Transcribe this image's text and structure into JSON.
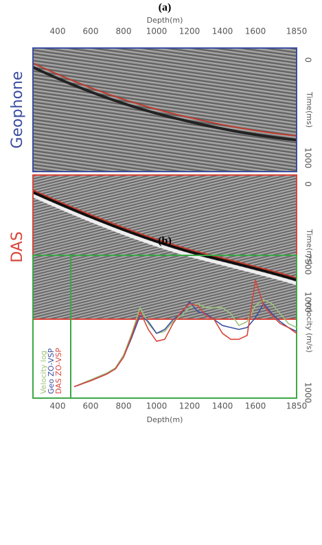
{
  "chart_data": [
    {
      "type": "seismic",
      "title": "(a)",
      "xlabel": "Depth(m)",
      "xlim": [
        250,
        1850
      ],
      "xticks": [
        400,
        600,
        800,
        1000,
        1200,
        1400,
        1600,
        1850
      ],
      "panels": [
        {
          "label": "Geophone",
          "color": "#3b4ea0",
          "ylabel": "Time(ms)",
          "ylim": [
            -120,
            1140
          ],
          "yticks": [
            0,
            1000
          ]
        },
        {
          "label": "DAS",
          "color": "#d8453a",
          "ylabel": "Time(ms)",
          "ylim": [
            -76,
            1145
          ],
          "yticks": [
            0,
            1000
          ]
        }
      ]
    },
    {
      "type": "line",
      "title": "(b)",
      "xlabel": "Depth(m)",
      "ylabel": "velocity (m/s)",
      "frame_color": "#3aa845",
      "xlim": [
        250,
        1850
      ],
      "xticks": [
        400,
        600,
        800,
        1000,
        1200,
        1400,
        1600,
        1850
      ],
      "ylim": [
        1000,
        7500
      ],
      "yticks": [
        1000,
        7500
      ],
      "x": [
        500,
        600,
        700,
        750,
        800,
        850,
        900,
        950,
        1000,
        1050,
        1100,
        1150,
        1200,
        1250,
        1300,
        1350,
        1400,
        1450,
        1500,
        1550,
        1600,
        1650,
        1700,
        1750,
        1800,
        1850
      ],
      "series": [
        {
          "name": "Velocity log",
          "color": "#9bc27a",
          "values": [
            1300,
            1650,
            2000,
            2250,
            2900,
            4000,
            5300,
            4500,
            4000,
            4100,
            4600,
            4900,
            5300,
            5500,
            5300,
            5300,
            5300,
            5000,
            4400,
            4600,
            5400,
            5700,
            5500,
            5000,
            4500,
            4300
          ]
        },
        {
          "name": "Geo ZO-VSP",
          "color": "#3b4ea0",
          "values": [
            1300,
            1600,
            1950,
            2200,
            2800,
            3800,
            4900,
            4600,
            4000,
            4200,
            4700,
            5000,
            5600,
            5100,
            5000,
            4700,
            4400,
            4300,
            4200,
            4300,
            4800,
            5500,
            5000,
            4600,
            4300,
            4100
          ]
        },
        {
          "name": "DAS ZO-VSP",
          "color": "#d8453a",
          "values": [
            1300,
            1600,
            1950,
            2200,
            2800,
            3900,
            5100,
            4200,
            3600,
            3700,
            4500,
            5100,
            5500,
            5400,
            4900,
            4700,
            4000,
            3700,
            3700,
            3900,
            6700,
            5400,
            4900,
            4500,
            4300,
            4000
          ]
        }
      ]
    }
  ]
}
